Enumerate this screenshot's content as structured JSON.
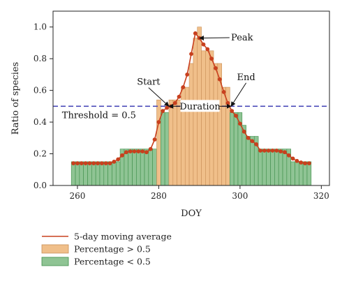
{
  "chart_data": {
    "type": "bar",
    "xlabel": "DOY",
    "ylabel": "Ratio of species",
    "xlim": [
      254,
      322
    ],
    "ylim": [
      0,
      1.1
    ],
    "xticks": [
      260,
      280,
      300,
      320
    ],
    "yticks": [
      0.0,
      0.2,
      0.4,
      0.6,
      0.8,
      1.0
    ],
    "ytick_labels": [
      "0.0",
      "0.2",
      "0.4",
      "0.6",
      "0.8",
      "1.0"
    ],
    "threshold": {
      "value": 0.5,
      "label": "Threshold = 0.5",
      "color": "#3b3bb3"
    },
    "bars": {
      "x": [
        259,
        260,
        261,
        262,
        263,
        264,
        265,
        266,
        267,
        268,
        269,
        270,
        271,
        272,
        273,
        274,
        275,
        276,
        277,
        278,
        279,
        280,
        281,
        282,
        283,
        284,
        285,
        286,
        287,
        288,
        289,
        290,
        291,
        292,
        293,
        294,
        295,
        296,
        297,
        298,
        299,
        300,
        301,
        302,
        303,
        304,
        305,
        306,
        307,
        308,
        309,
        310,
        311,
        312,
        313,
        314,
        315,
        316,
        317
      ],
      "values": [
        0.15,
        0.15,
        0.15,
        0.15,
        0.15,
        0.15,
        0.15,
        0.15,
        0.15,
        0.15,
        0.15,
        0.15,
        0.23,
        0.23,
        0.23,
        0.23,
        0.23,
        0.23,
        0.23,
        0.23,
        0.23,
        0.54,
        0.46,
        0.46,
        0.54,
        0.54,
        0.54,
        0.62,
        0.62,
        0.77,
        0.93,
        1.0,
        0.85,
        0.85,
        0.85,
        0.77,
        0.77,
        0.62,
        0.62,
        0.46,
        0.46,
        0.46,
        0.38,
        0.31,
        0.31,
        0.31,
        0.23,
        0.23,
        0.23,
        0.23,
        0.23,
        0.23,
        0.23,
        0.23,
        0.15,
        0.15,
        0.15,
        0.15,
        0.15
      ],
      "color_above": "#f0bf8a",
      "color_below": "#8fc494",
      "edge_above": "#c98f57",
      "edge_below": "#3f8f4a"
    },
    "moving_average": {
      "x": [
        259,
        260,
        261,
        262,
        263,
        264,
        265,
        266,
        267,
        268,
        269,
        270,
        271,
        272,
        273,
        274,
        275,
        276,
        277,
        278,
        279,
        280,
        281,
        282,
        283,
        284,
        285,
        286,
        287,
        288,
        289,
        290,
        291,
        292,
        293,
        294,
        295,
        296,
        297,
        298,
        299,
        300,
        301,
        302,
        303,
        304,
        305,
        306,
        307,
        308,
        309,
        310,
        311,
        312,
        313,
        314,
        315,
        316,
        317
      ],
      "values": [
        0.14,
        0.14,
        0.14,
        0.14,
        0.14,
        0.14,
        0.14,
        0.14,
        0.14,
        0.14,
        0.15,
        0.165,
        0.19,
        0.21,
        0.215,
        0.215,
        0.215,
        0.215,
        0.21,
        0.23,
        0.29,
        0.4,
        0.47,
        0.49,
        0.5,
        0.52,
        0.56,
        0.62,
        0.7,
        0.83,
        0.96,
        0.93,
        0.89,
        0.86,
        0.8,
        0.74,
        0.67,
        0.59,
        0.52,
        0.47,
        0.44,
        0.39,
        0.34,
        0.3,
        0.28,
        0.26,
        0.22,
        0.22,
        0.22,
        0.22,
        0.22,
        0.215,
        0.21,
        0.19,
        0.17,
        0.155,
        0.145,
        0.14,
        0.14
      ],
      "color": "#c8401e"
    },
    "annotations": [
      {
        "text": "Peak",
        "label_x": 300.5,
        "label_y": 0.915,
        "point_x": 290.0,
        "point_y": 0.93
      },
      {
        "text": "Start",
        "label_x": 277.5,
        "label_y": 0.635,
        "point_x": 282.5,
        "point_y": 0.5
      },
      {
        "text": "End",
        "label_x": 301.5,
        "label_y": 0.665,
        "point_x": 297.8,
        "point_y": 0.5
      }
    ],
    "duration": {
      "text": "Duration",
      "x_start": 282.5,
      "x_end": 297.8,
      "y": 0.5
    },
    "legend": [
      {
        "label": "5-day moving average",
        "kind": "line",
        "color": "#c8401e"
      },
      {
        "label": "Percentage > 0.5",
        "kind": "patch",
        "color": "#f0bf8a",
        "edge": "#c98f57"
      },
      {
        "label": "Percentage < 0.5",
        "kind": "patch",
        "color": "#8fc494",
        "edge": "#3f8f4a"
      }
    ]
  }
}
